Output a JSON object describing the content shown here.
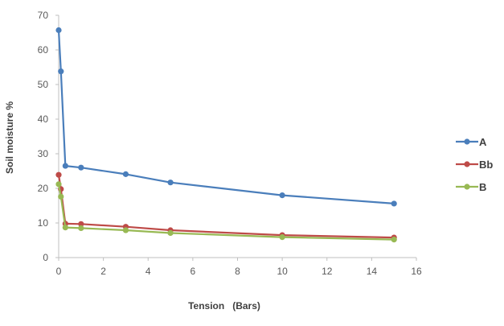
{
  "chart_data": {
    "type": "line",
    "title": "",
    "xlabel": "Tension   (Bars)",
    "ylabel": "Soil moisture %",
    "xlim": [
      0,
      16
    ],
    "ylim": [
      0,
      70
    ],
    "xticks": [
      0,
      2,
      4,
      6,
      8,
      10,
      12,
      14,
      16
    ],
    "yticks": [
      0,
      10,
      20,
      30,
      40,
      50,
      60,
      70
    ],
    "grid": false,
    "legend_position": "right",
    "series": [
      {
        "name": "A",
        "color": "#4a7ebb",
        "points": [
          [
            0,
            65.7
          ],
          [
            0.1,
            53.8
          ],
          [
            0.3,
            26.5
          ],
          [
            1,
            26.0
          ],
          [
            3,
            24.1
          ],
          [
            5,
            21.7
          ],
          [
            10,
            18.0
          ],
          [
            15,
            15.6
          ]
        ]
      },
      {
        "name": "Bb",
        "color": "#be4b48",
        "points": [
          [
            0,
            23.9
          ],
          [
            0.1,
            19.8
          ],
          [
            0.3,
            9.8
          ],
          [
            1,
            9.7
          ],
          [
            3,
            8.9
          ],
          [
            5,
            7.9
          ],
          [
            10,
            6.5
          ],
          [
            15,
            5.8
          ]
        ]
      },
      {
        "name": "B",
        "color": "#98b954",
        "points": [
          [
            0,
            21.2
          ],
          [
            0.1,
            17.6
          ],
          [
            0.3,
            8.7
          ],
          [
            1,
            8.5
          ],
          [
            3,
            7.9
          ],
          [
            5,
            7.1
          ],
          [
            10,
            5.9
          ],
          [
            15,
            5.2
          ]
        ]
      }
    ]
  }
}
